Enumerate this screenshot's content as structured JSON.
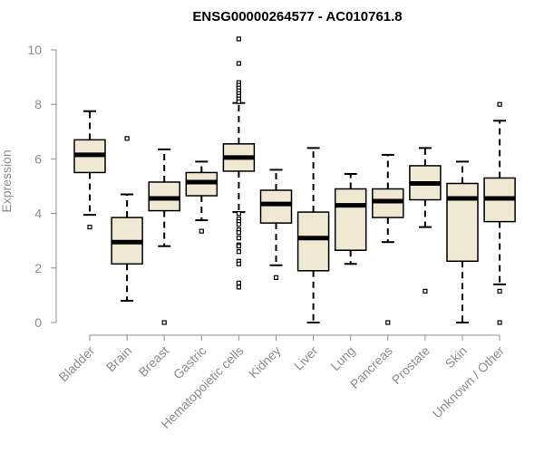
{
  "chart_data": {
    "type": "boxplot",
    "title": "ENSG00000264577 - AC010761.8",
    "ylabel": "Expression",
    "xlabel": "",
    "ylim": [
      0,
      10
    ],
    "yticks": [
      0,
      2,
      4,
      6,
      8,
      10
    ],
    "grid": false,
    "legend": "none",
    "box_fill": "#efe8d2",
    "box_stroke": "#000000",
    "axis_color": "#8c8c8c",
    "categories": [
      "Bladder",
      "Brain",
      "Breast",
      "Gastric",
      "Hematopoietic cells",
      "Kidney",
      "Liver",
      "Lung",
      "Pancreas",
      "Prostate",
      "Skin",
      "Unknown / Other"
    ],
    "boxes": [
      {
        "category": "Bladder",
        "whisker_low": 3.95,
        "q1": 5.5,
        "median": 6.15,
        "q3": 6.7,
        "whisker_high": 7.75,
        "outliers": [
          3.5
        ]
      },
      {
        "category": "Brain",
        "whisker_low": 0.8,
        "q1": 2.15,
        "median": 2.95,
        "q3": 3.85,
        "whisker_high": 4.7,
        "outliers": [
          6.75
        ]
      },
      {
        "category": "Breast",
        "whisker_low": 2.8,
        "q1": 4.1,
        "median": 4.55,
        "q3": 5.15,
        "whisker_high": 6.35,
        "outliers": [
          0
        ]
      },
      {
        "category": "Gastric",
        "whisker_low": 3.75,
        "q1": 4.65,
        "median": 5.15,
        "q3": 5.5,
        "whisker_high": 5.9,
        "outliers": [
          3.35
        ]
      },
      {
        "category": "Hematopoietic cells",
        "whisker_low": 4.05,
        "q1": 5.55,
        "median": 6.05,
        "q3": 6.55,
        "whisker_high": 8.05,
        "outliers": [
          10.4,
          9.5,
          8.8,
          8.7,
          8.6,
          8.5,
          8.4,
          8.3,
          8.2,
          8.1,
          4.0,
          3.8,
          3.7,
          3.6,
          3.4,
          3.3,
          3.1,
          2.85,
          2.8,
          2.6,
          2.25,
          2.15,
          1.45,
          1.3
        ]
      },
      {
        "category": "Kidney",
        "whisker_low": 2.1,
        "q1": 3.65,
        "median": 4.35,
        "q3": 4.85,
        "whisker_high": 5.6,
        "outliers": [
          1.65
        ]
      },
      {
        "category": "Liver",
        "whisker_low": 0.0,
        "q1": 1.9,
        "median": 3.1,
        "q3": 4.05,
        "whisker_high": 6.4,
        "outliers": []
      },
      {
        "category": "Lung",
        "whisker_low": 2.15,
        "q1": 2.65,
        "median": 4.3,
        "q3": 4.9,
        "whisker_high": 5.45,
        "outliers": []
      },
      {
        "category": "Pancreas",
        "whisker_low": 2.95,
        "q1": 3.85,
        "median": 4.45,
        "q3": 4.9,
        "whisker_high": 6.15,
        "outliers": [
          0
        ]
      },
      {
        "category": "Prostate",
        "whisker_low": 3.5,
        "q1": 4.5,
        "median": 5.1,
        "q3": 5.75,
        "whisker_high": 6.4,
        "outliers": [
          1.15
        ]
      },
      {
        "category": "Skin",
        "whisker_low": 0.0,
        "q1": 2.25,
        "median": 4.55,
        "q3": 5.1,
        "whisker_high": 5.9,
        "outliers": []
      },
      {
        "category": "Unknown / Other",
        "whisker_low": 1.4,
        "q1": 3.7,
        "median": 4.55,
        "q3": 5.3,
        "whisker_high": 7.4,
        "outliers": [
          8.0,
          1.15,
          0
        ]
      }
    ]
  }
}
